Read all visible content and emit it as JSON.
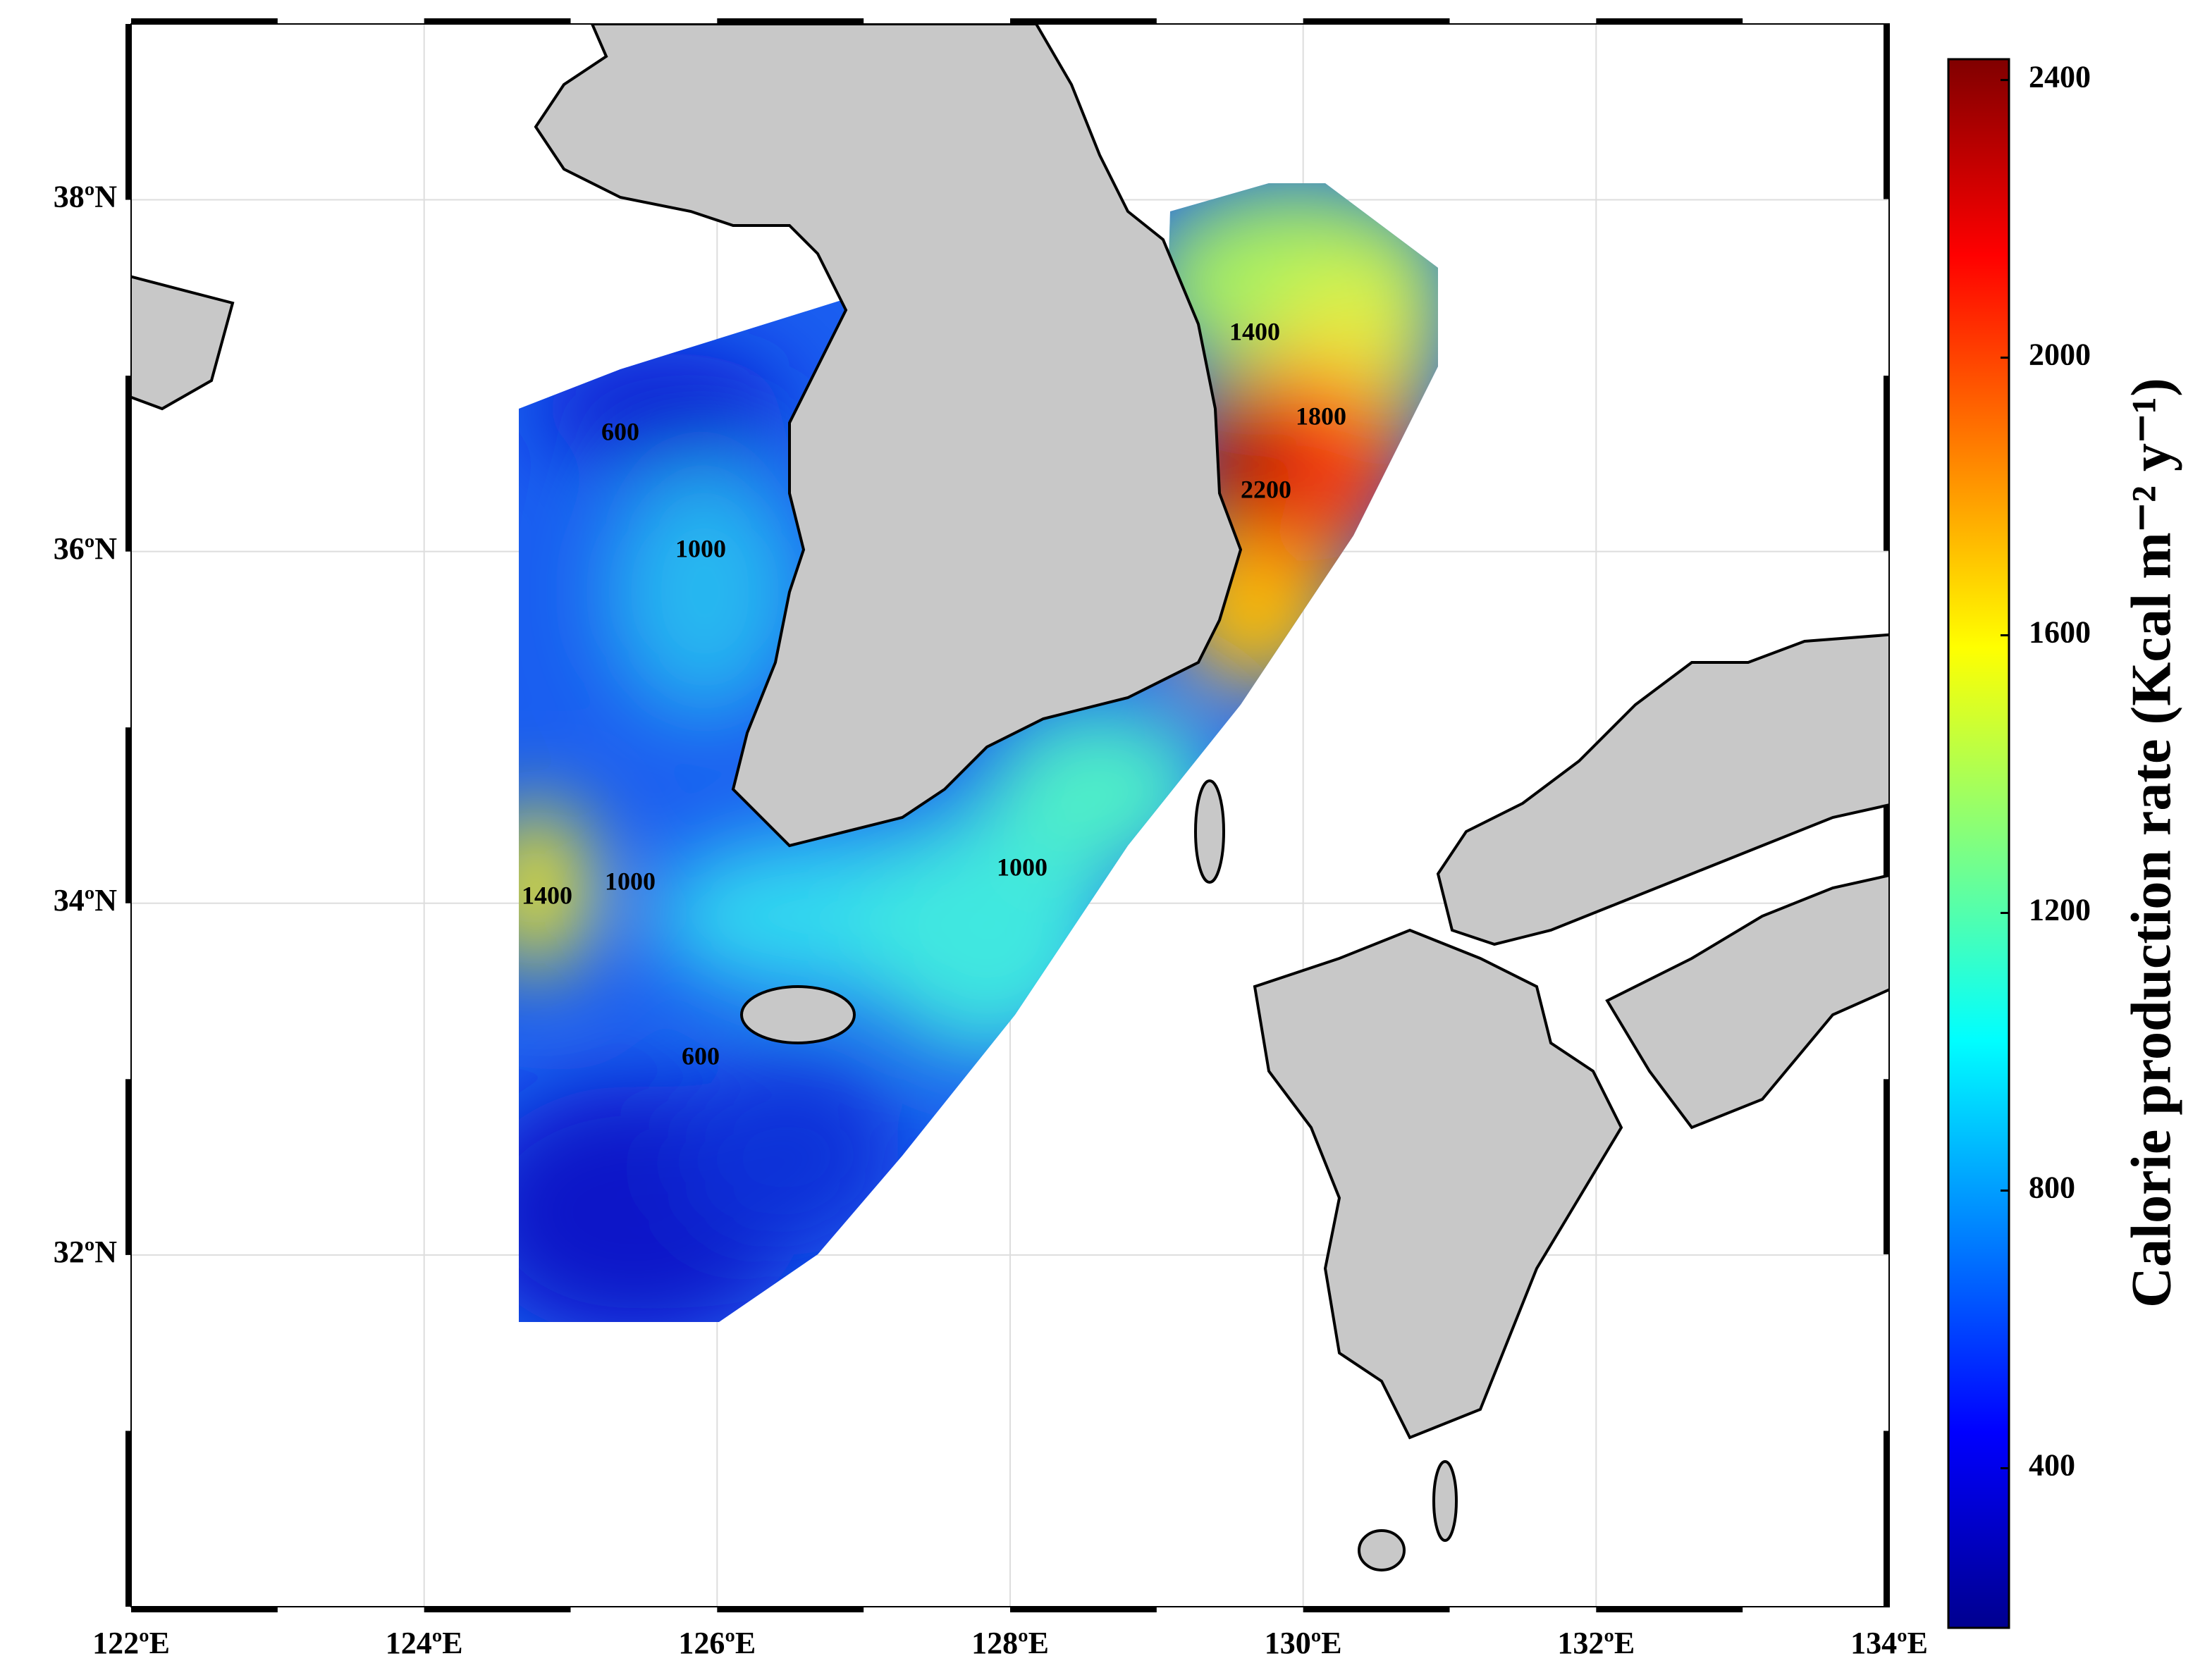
{
  "map": {
    "xlim": [
      122,
      134
    ],
    "ylim": [
      30,
      39
    ],
    "xticks": [
      {
        "value": 122,
        "label": "122ºE"
      },
      {
        "value": 124,
        "label": "124ºE"
      },
      {
        "value": 126,
        "label": "126ºE"
      },
      {
        "value": 128,
        "label": "128ºE"
      },
      {
        "value": 130,
        "label": "130ºE"
      },
      {
        "value": 132,
        "label": "132ºE"
      },
      {
        "value": 134,
        "label": "134ºE"
      }
    ],
    "yticks": [
      {
        "value": 32,
        "label": "32ºN"
      },
      {
        "value": 34,
        "label": "34ºN"
      },
      {
        "value": 36,
        "label": "36ºN"
      },
      {
        "value": 38,
        "label": "38ºN"
      }
    ],
    "grid": true,
    "contour_labels": [
      600,
      1000,
      1400,
      1800,
      2200,
      1000,
      1400,
      1000,
      600
    ]
  },
  "colorbar": {
    "label": "Calorie production rate (Kcal m⁻² y⁻¹)",
    "clim": [
      170,
      2430
    ],
    "ticks": [
      400,
      800,
      1200,
      1600,
      2000,
      2400
    ],
    "colormap": [
      "#00008f",
      "#0000ff",
      "#0080ff",
      "#00ffff",
      "#80ff80",
      "#ffff00",
      "#ff8000",
      "#ff0000",
      "#800000"
    ]
  }
}
